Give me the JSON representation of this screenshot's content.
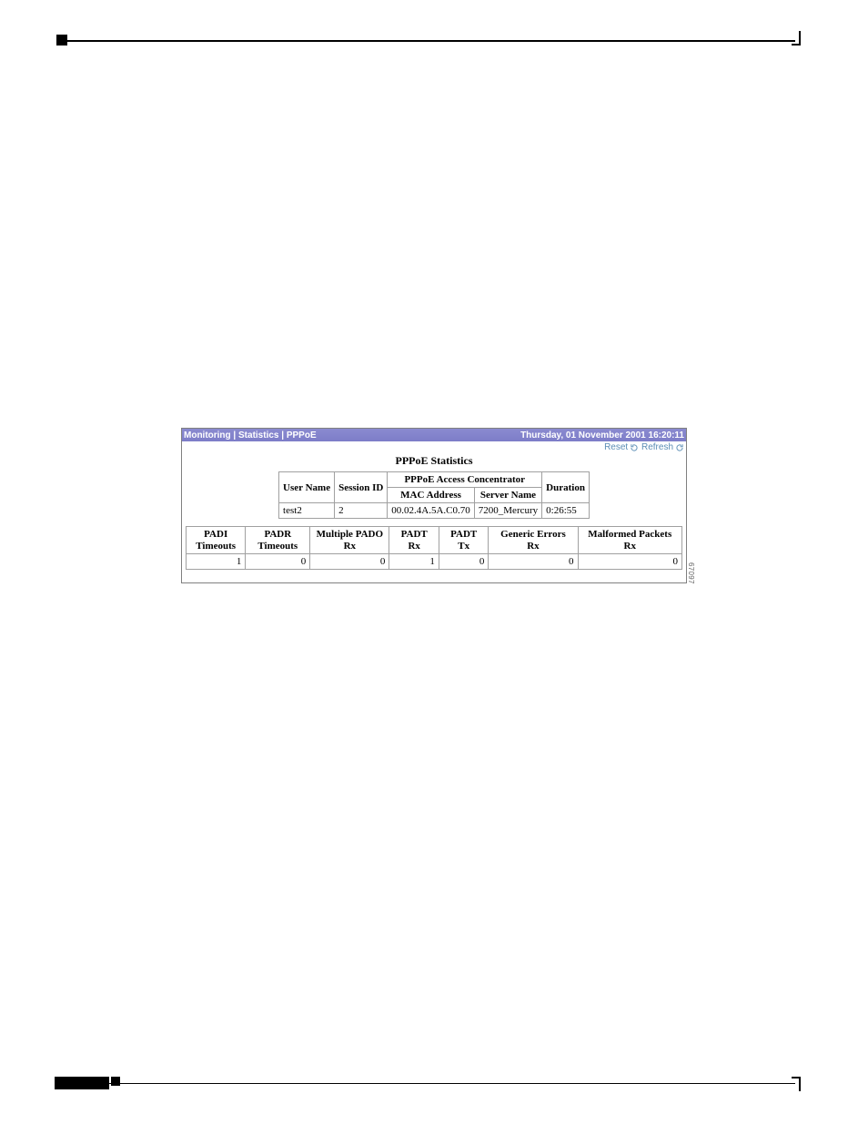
{
  "figure_id": "67097",
  "header": {
    "breadcrumb": "Monitoring | Statistics | PPPoE",
    "timestamp": "Thursday, 01 November 2001 16:20:11"
  },
  "toolbar": {
    "reset": "Reset",
    "refresh": "Refresh"
  },
  "title": "PPPoE Statistics",
  "session_table": {
    "group_header": "PPPoE Access Concentrator",
    "columns": {
      "user": "User Name",
      "session": "Session ID",
      "mac": "MAC Address",
      "server": "Server Name",
      "duration": "Duration"
    },
    "row": {
      "user": "test2",
      "session": "2",
      "mac": "00.02.4A.5A.C0.70",
      "server": "7200_Mercury",
      "duration": "0:26:55"
    }
  },
  "stats_table": {
    "headers": {
      "padi": "PADI\nTimeouts",
      "padr": "PADR\nTimeouts",
      "mpado": "Multiple PADO\nRx",
      "padt_rx": "PADT\nRx",
      "padt_tx": "PADT\nTx",
      "gen_err": "Generic Errors\nRx",
      "malformed": "Malformed Packets\nRx"
    },
    "row": {
      "padi": "1",
      "padr": "0",
      "mpado": "0",
      "padt_rx": "1",
      "padt_tx": "0",
      "gen_err": "0",
      "malformed": "0"
    },
    "col_pct": {
      "padi": 12,
      "padr": 13,
      "mpado": 16,
      "padt_rx": 10,
      "padt_tx": 10,
      "gen_err": 18,
      "malformed": 21
    }
  },
  "colors": {
    "header_bg_top": "#8b8bd0",
    "header_bg_bot": "#7d7dc8",
    "header_text": "#ffffff",
    "link": "#5b8db5",
    "border": "#a0a0a0",
    "page_bg": "#ffffff",
    "text": "#000000"
  }
}
